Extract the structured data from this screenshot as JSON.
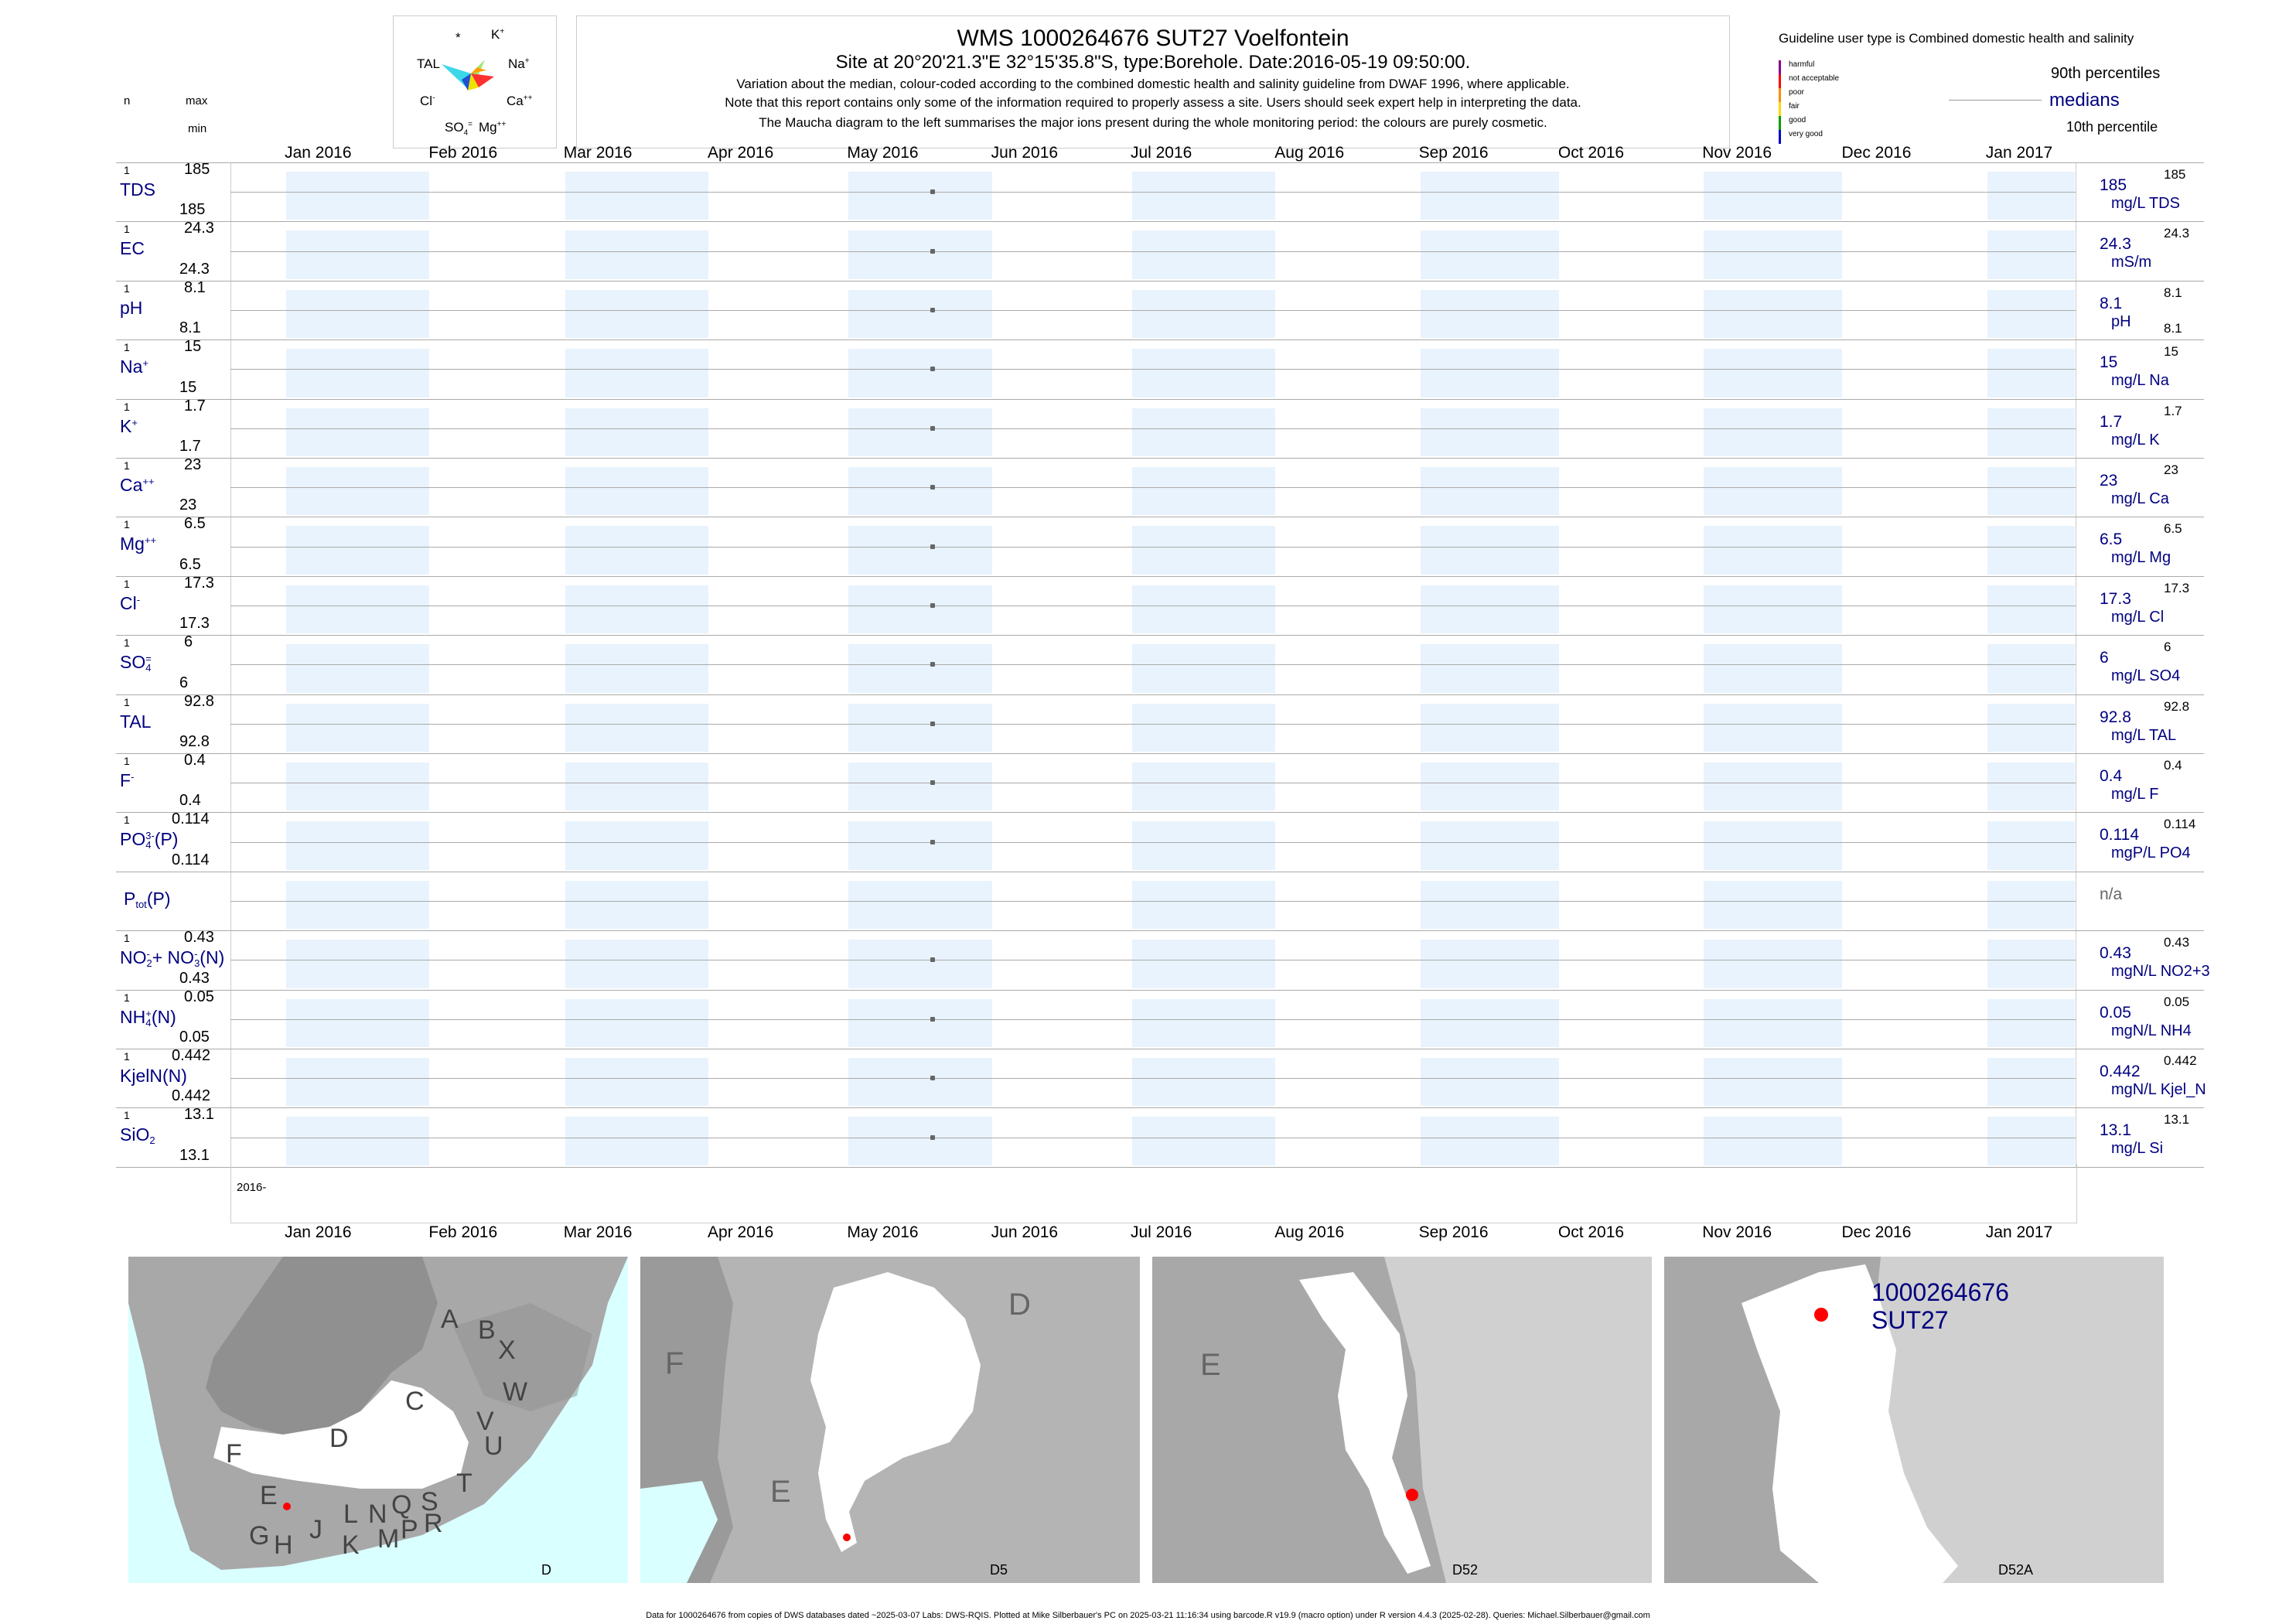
{
  "header": {
    "title": "WMS 1000264676 SUT27 Voelfontein",
    "subtitle": "Site at 20°20'21.3\"E 32°15'35.8\"S, type:Borehole. Date:2016-05-19 09:50:00.",
    "note1": "Variation about the median,  colour-coded according to the combined domestic health and salinity guideline from DWAF 1996, where applicable.",
    "note2": "Note that this report contains only some of the information required to properly assess a site. Users should seek expert help in interpreting the data.",
    "note3": "The Maucha diagram to the left summarises the major ions present during the whole monitoring period: the colours are purely cosmetic."
  },
  "maucha": {
    "labels": {
      "star": "*",
      "k": "K",
      "k_sup": "+",
      "tal": "TAL",
      "na": "Na",
      "na_sup": "+",
      "cl": "Cl",
      "cl_sup": "-",
      "ca": "Ca",
      "ca_sup": "++",
      "so4": "SO",
      "so4_sub": "4",
      "so4_sup": "=",
      "mg": "Mg",
      "mg_sup": "++"
    }
  },
  "legend": {
    "guideline_title": "Guideline user type is Combined domestic health and salinity",
    "categories": [
      {
        "label": "harmful",
        "color": "#8b008b"
      },
      {
        "label": "not acceptable",
        "color": "#ff0000"
      },
      {
        "label": "poor",
        "color": "#ff8c00"
      },
      {
        "label": "fair",
        "color": "#ffd700"
      },
      {
        "label": "good",
        "color": "#00a000"
      },
      {
        "label": "very good",
        "color": "#0000cd"
      }
    ],
    "p90": "90th percentiles",
    "medians": "medians",
    "p10": "10th percentile"
  },
  "left_header": {
    "n": "n",
    "max": "max",
    "min": "min"
  },
  "months_top": [
    "Jan 2016",
    "Feb 2016",
    "Mar 2016",
    "Apr 2016",
    "May 2016",
    "Jun 2016",
    "Jul 2016",
    "Aug 2016",
    "Sep 2016",
    "Oct 2016",
    "Nov 2016",
    "Dec 2016",
    "Jan 2017"
  ],
  "months_bottom": [
    "Jan 2016",
    "Feb 2016",
    "Mar 2016",
    "Apr 2016",
    "May 2016",
    "Jun 2016",
    "Jul 2016",
    "Aug 2016",
    "Sep 2016",
    "Oct 2016",
    "Nov 2016",
    "Dec 2016",
    "Jan 2017"
  ],
  "year_label": "2016-",
  "chart_data": {
    "type": "scatter",
    "x_date": "2016-05-19",
    "xlim": [
      "2015-12-20",
      "2017-01-20"
    ],
    "series": [
      {
        "name": "TDS",
        "sup": "",
        "sub": "",
        "n": "1",
        "max": "185",
        "min": "185",
        "median": "185",
        "unit": "mg/L TDS",
        "rmax": "185",
        "rmin": "",
        "has_point": true
      },
      {
        "name": "EC",
        "sup": "",
        "sub": "",
        "n": "1",
        "max": "24.3",
        "min": "24.3",
        "median": "24.3",
        "unit": "mS/m",
        "rmax": "24.3",
        "rmin": "",
        "has_point": true
      },
      {
        "name": "pH",
        "sup": "",
        "sub": "",
        "n": "1",
        "max": "8.1",
        "min": "8.1",
        "median": "8.1",
        "unit": "pH",
        "rmax": "8.1",
        "rmin": "8.1",
        "has_point": true
      },
      {
        "name": "Na",
        "sup": "+",
        "sub": "",
        "n": "1",
        "max": "15",
        "min": "15",
        "median": "15",
        "unit": "mg/L Na",
        "rmax": "15",
        "rmin": "",
        "has_point": true
      },
      {
        "name": "K",
        "sup": "+",
        "sub": "",
        "n": "1",
        "max": "1.7",
        "min": "1.7",
        "median": "1.7",
        "unit": "mg/L K",
        "rmax": "1.7",
        "rmin": "",
        "has_point": true
      },
      {
        "name": "Ca",
        "sup": "++",
        "sub": "",
        "n": "1",
        "max": "23",
        "min": "23",
        "median": "23",
        "unit": "mg/L Ca",
        "rmax": "23",
        "rmin": "",
        "has_point": true
      },
      {
        "name": "Mg",
        "sup": "++",
        "sub": "",
        "n": "1",
        "max": "6.5",
        "min": "6.5",
        "median": "6.5",
        "unit": "mg/L Mg",
        "rmax": "6.5",
        "rmin": "",
        "has_point": true
      },
      {
        "name": "Cl",
        "sup": "-",
        "sub": "",
        "n": "1",
        "max": "17.3",
        "min": "17.3",
        "median": "17.3",
        "unit": "mg/L Cl",
        "rmax": "17.3",
        "rmin": "",
        "has_point": true
      },
      {
        "name": "SO",
        "sup": "=",
        "sub": "4",
        "n": "1",
        "max": "6",
        "min": "6",
        "median": "6",
        "unit": "mg/L SO4",
        "rmax": "6",
        "rmin": "",
        "has_point": true
      },
      {
        "name": "TAL",
        "sup": "",
        "sub": "",
        "n": "1",
        "max": "92.8",
        "min": "92.8",
        "median": "92.8",
        "unit": "mg/L TAL",
        "rmax": "92.8",
        "rmin": "",
        "has_point": true
      },
      {
        "name": "F",
        "sup": "-",
        "sub": "",
        "n": "1",
        "max": "0.4",
        "min": "0.4",
        "median": "0.4",
        "unit": "mg/L F",
        "rmax": "0.4",
        "rmin": "",
        "has_point": true
      },
      {
        "name": "PO",
        "sup": "3-",
        "sub": "4",
        "suffix": "(P)",
        "n": "1",
        "max": "0.114",
        "min": "0.114",
        "median": "0.114",
        "unit": "mgP/L PO4",
        "rmax": "0.114",
        "rmin": "",
        "has_point": true
      },
      {
        "name": "P",
        "sup": "",
        "sub": "tot",
        "suffix": "(P)",
        "n": "",
        "max": "",
        "min": "",
        "median": "n/a",
        "unit": "",
        "rmax": "",
        "rmin": "",
        "has_point": false
      },
      {
        "name": "NO",
        "sup": "-",
        "sub": "2",
        "suffix": "+ NO",
        "sup2": "-",
        "sub2": "3",
        "suffix2": "(N)",
        "n": "1",
        "max": "0.43",
        "min": "0.43",
        "median": "0.43",
        "unit": "mgN/L NO2+3",
        "rmax": "0.43",
        "rmin": "",
        "has_point": true
      },
      {
        "name": "NH",
        "sup": "+",
        "sub": "4",
        "suffix": "(N)",
        "n": "1",
        "max": "0.05",
        "min": "0.05",
        "median": "0.05",
        "unit": "mgN/L NH4",
        "rmax": "0.05",
        "rmin": "",
        "has_point": true
      },
      {
        "name": "KjelN(N)",
        "sup": "",
        "sub": "",
        "n": "1",
        "max": "0.442",
        "min": "0.442",
        "median": "0.442",
        "unit": "mgN/L Kjel_N",
        "rmax": "0.442",
        "rmin": "",
        "has_point": true
      },
      {
        "name": "SiO",
        "sup": "",
        "sub": "2",
        "n": "1",
        "max": "13.1",
        "min": "13.1",
        "median": "13.1",
        "unit": "mg/L Si",
        "rmax": "13.1",
        "rmin": "",
        "has_point": true
      }
    ]
  },
  "maps": [
    {
      "label": "D",
      "letters": [
        "A",
        "B",
        "X",
        "C",
        "W",
        "D",
        "V",
        "U",
        "F",
        "E",
        "T",
        "J",
        "L",
        "N",
        "Q",
        "S",
        "G",
        "H",
        "K",
        "M",
        "P",
        "R"
      ]
    },
    {
      "label": "D5",
      "letters": [
        "D",
        "F",
        "E"
      ]
    },
    {
      "label": "D52",
      "letters": [
        "E"
      ]
    },
    {
      "label": "D52A",
      "site_id": "1000264676",
      "site_name": "SUT27"
    }
  ],
  "footer": "Data for 1000264676 from copies of DWS databases dated ~2025-03-07 Labs: DWS-RQIS. Plotted at Mike Silberbauer's PC on 2025-03-21 11:16:34 using barcode.R v19.9 (macro option) under R version 4.4.3 (2025-02-28). Queries: Michael.Silberbauer@gmail.com"
}
